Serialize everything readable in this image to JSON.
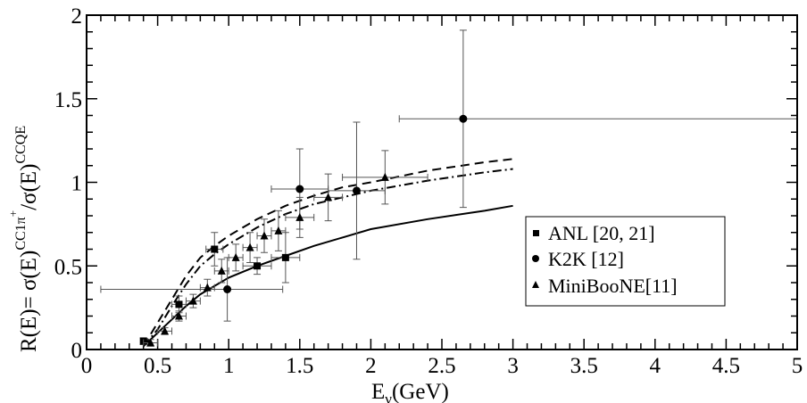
{
  "chart_data": {
    "type": "scatter",
    "xlabel": {
      "main": "E",
      "sub": "ν",
      "rest": "(GeV)"
    },
    "ylabel": {
      "p1": "R(E)= σ(E)",
      "s1": "CC1π",
      "s1plus": "+",
      "p2": "/σ(E)",
      "s2": "CCQE"
    },
    "xlim": [
      0,
      5
    ],
    "ylim": [
      0,
      2
    ],
    "x_ticks": [
      0,
      0.5,
      1,
      1.5,
      2,
      2.5,
      3,
      3.5,
      4,
      4.5,
      5
    ],
    "x_tick_labels": [
      "0",
      "0.5",
      "1",
      "1.5",
      "2",
      "2.5",
      "3",
      "3.5",
      "4",
      "4.5",
      "5"
    ],
    "y_ticks": [
      0,
      0.5,
      1,
      1.5,
      2
    ],
    "y_tick_labels": [
      "0",
      "0.5",
      "1",
      "1.5",
      "2"
    ],
    "legend_position": "right",
    "series": [
      {
        "name": "ANL [20, 21]",
        "marker": "square",
        "points": [
          {
            "x": 0.4,
            "y": 0.05,
            "xerr": 0.02,
            "yerr": 0.02
          },
          {
            "x": 0.65,
            "y": 0.27,
            "xerr": 0.05,
            "yerr": 0.05
          },
          {
            "x": 0.9,
            "y": 0.6,
            "xerr": 0.06,
            "yerr": 0.1
          },
          {
            "x": 1.2,
            "y": 0.5,
            "xerr": 0.1,
            "yerr": 0.05
          },
          {
            "x": 1.4,
            "y": 0.55,
            "xerr": 0.1,
            "yerr": 0.15
          }
        ]
      },
      {
        "name": "K2K [12]",
        "marker": "circle",
        "points": [
          {
            "x": 0.99,
            "y": 0.36,
            "xerr_lo": 0.89,
            "xerr_hi": 0.39,
            "yerr": 0.19
          },
          {
            "x": 1.5,
            "y": 0.96,
            "xerr": 0.2,
            "yerr": 0.24
          },
          {
            "x": 1.9,
            "y": 0.95,
            "xerr": 0.2,
            "yerr": 0.41
          },
          {
            "x": 2.65,
            "y": 1.38,
            "xerr_lo": 0.45,
            "xerr_hi": 2.35,
            "yerr": 0.53
          }
        ]
      },
      {
        "name": "MiniBooNE[11]",
        "marker": "triangle",
        "points": [
          {
            "x": 0.45,
            "y": 0.04,
            "xerr": 0.05,
            "yerr": 0.02
          },
          {
            "x": 0.55,
            "y": 0.11,
            "xerr": 0.05,
            "yerr": 0.02
          },
          {
            "x": 0.65,
            "y": 0.2,
            "xerr": 0.05,
            "yerr": 0.03
          },
          {
            "x": 0.75,
            "y": 0.29,
            "xerr": 0.05,
            "yerr": 0.04
          },
          {
            "x": 0.85,
            "y": 0.37,
            "xerr": 0.05,
            "yerr": 0.05
          },
          {
            "x": 0.95,
            "y": 0.47,
            "xerr": 0.05,
            "yerr": 0.07
          },
          {
            "x": 1.05,
            "y": 0.55,
            "xerr": 0.05,
            "yerr": 0.08
          },
          {
            "x": 1.15,
            "y": 0.61,
            "xerr": 0.05,
            "yerr": 0.09
          },
          {
            "x": 1.25,
            "y": 0.68,
            "xerr": 0.05,
            "yerr": 0.1
          },
          {
            "x": 1.35,
            "y": 0.71,
            "xerr": 0.05,
            "yerr": 0.12
          },
          {
            "x": 1.5,
            "y": 0.79,
            "xerr": 0.1,
            "yerr": 0.12
          },
          {
            "x": 1.7,
            "y": 0.91,
            "xerr": 0.1,
            "yerr": 0.14
          },
          {
            "x": 2.1,
            "y": 1.03,
            "xerr": 0.3,
            "yerr": 0.16
          }
        ]
      }
    ],
    "curves": [
      {
        "style": "solid",
        "x": [
          0.4,
          0.5,
          0.6,
          0.7,
          0.8,
          0.9,
          1.0,
          1.2,
          1.4,
          1.6,
          1.8,
          2.0,
          2.4,
          2.8,
          3.0
        ],
        "y": [
          0.02,
          0.1,
          0.18,
          0.26,
          0.33,
          0.38,
          0.43,
          0.5,
          0.56,
          0.62,
          0.67,
          0.72,
          0.78,
          0.83,
          0.86
        ]
      },
      {
        "style": "dashed",
        "x": [
          0.4,
          0.5,
          0.6,
          0.7,
          0.8,
          0.9,
          1.0,
          1.2,
          1.4,
          1.6,
          1.8,
          2.0,
          2.4,
          2.8,
          3.0
        ],
        "y": [
          0.02,
          0.16,
          0.3,
          0.44,
          0.55,
          0.62,
          0.68,
          0.78,
          0.86,
          0.92,
          0.97,
          1.0,
          1.07,
          1.12,
          1.14
        ]
      },
      {
        "style": "dash-dot",
        "x": [
          0.4,
          0.5,
          0.6,
          0.7,
          0.8,
          0.9,
          1.0,
          1.2,
          1.4,
          1.6,
          1.8,
          2.0,
          2.4,
          2.8,
          3.0
        ],
        "y": [
          0.02,
          0.12,
          0.26,
          0.39,
          0.5,
          0.57,
          0.63,
          0.73,
          0.81,
          0.87,
          0.91,
          0.95,
          1.01,
          1.06,
          1.08
        ]
      }
    ]
  }
}
